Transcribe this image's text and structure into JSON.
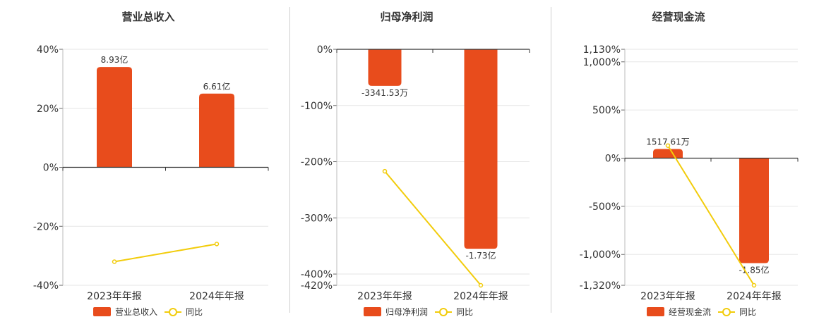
{
  "colors": {
    "bar": "#e84c1c",
    "yoy_line": "#f2cc0c",
    "grid": "#e6e6e6",
    "axis": "#333333",
    "text": "#333333"
  },
  "chart_data": [
    {
      "type": "bar",
      "title": "营业总收入",
      "categories": [
        "2023年年报",
        "2024年年报"
      ],
      "series": [
        {
          "name": "营业总收入",
          "kind": "bar",
          "values": [
            34,
            25
          ],
          "labels": [
            "8.93亿",
            "6.61亿"
          ]
        },
        {
          "name": "同比",
          "kind": "line",
          "values": [
            -32,
            -26
          ]
        }
      ],
      "yticks": [
        40,
        20,
        0,
        -20,
        -40
      ],
      "ytick_labels": [
        "40%",
        "20%",
        "0%",
        "-20%",
        "-40%"
      ],
      "ylim": [
        -40,
        40
      ],
      "legend_position": "bottom"
    },
    {
      "type": "bar",
      "title": "归母净利润",
      "categories": [
        "2023年年报",
        "2024年年报"
      ],
      "series": [
        {
          "name": "归母净利润",
          "kind": "bar",
          "values": [
            -65,
            -355
          ],
          "labels": [
            "-3341.53万",
            "-1.73亿"
          ]
        },
        {
          "name": "同比",
          "kind": "line",
          "values": [
            -217,
            -420
          ]
        }
      ],
      "yticks": [
        0,
        -100,
        -200,
        -300,
        -400,
        -420
      ],
      "ytick_labels": [
        "0%",
        "-100%",
        "-200%",
        "-300%",
        "-400%",
        "-420%"
      ],
      "ylim": [
        -420,
        0
      ],
      "legend_position": "bottom"
    },
    {
      "type": "bar",
      "title": "经营现金流",
      "categories": [
        "2023年年报",
        "2024年年报"
      ],
      "series": [
        {
          "name": "经营现金流",
          "kind": "bar",
          "values": [
            95,
            -1090
          ],
          "labels": [
            "1517.61万",
            "-1.85亿"
          ]
        },
        {
          "name": "同比",
          "kind": "line",
          "values": [
            130,
            -1320
          ]
        }
      ],
      "yticks": [
        1130,
        1000,
        500,
        0,
        -500,
        -1000,
        -1320
      ],
      "ytick_labels": [
        "1,130%",
        "1,000%",
        "500%",
        "0%",
        "-500%",
        "-1,000%",
        "-1,320%"
      ],
      "ylim": [
        -1320,
        1130
      ],
      "legend_position": "bottom"
    }
  ]
}
